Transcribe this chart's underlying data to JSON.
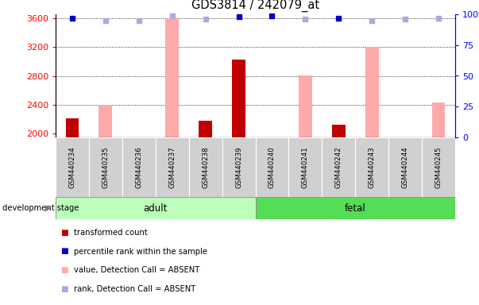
{
  "title": "GDS3814 / 242079_at",
  "samples": [
    "GSM440234",
    "GSM440235",
    "GSM440236",
    "GSM440237",
    "GSM440238",
    "GSM440239",
    "GSM440240",
    "GSM440241",
    "GSM440242",
    "GSM440243",
    "GSM440244",
    "GSM440245"
  ],
  "ylim_left": [
    1950,
    3650
  ],
  "ylim_right": [
    0,
    100
  ],
  "yticks_left": [
    2000,
    2400,
    2800,
    3200,
    3600
  ],
  "yticks_right": [
    0,
    25,
    50,
    75,
    100
  ],
  "bar_values": [
    2210,
    0,
    0,
    0,
    2175,
    3020,
    0,
    0,
    2130,
    0,
    0,
    0
  ],
  "bar_color_dark": "#c00000",
  "absent_bar_values": [
    0,
    2400,
    0,
    3600,
    0,
    0,
    0,
    2800,
    0,
    3200,
    0,
    2430
  ],
  "absent_bar_color": "#ffaaaa",
  "rank_dark": [
    97,
    0,
    0,
    0,
    0,
    98,
    99,
    0,
    97,
    0,
    0,
    0
  ],
  "rank_absent": [
    0,
    95,
    95,
    99,
    96,
    0,
    0,
    96,
    0,
    95,
    96,
    97
  ],
  "rank_dark_color": "#0000cc",
  "rank_absent_color": "#aaaadd",
  "adult_color": "#bbffbb",
  "fetal_color": "#55dd55",
  "legend_items": [
    {
      "label": "transformed count",
      "color": "#c00000"
    },
    {
      "label": "percentile rank within the sample",
      "color": "#0000cc"
    },
    {
      "label": "value, Detection Call = ABSENT",
      "color": "#ffaaaa"
    },
    {
      "label": "rank, Detection Call = ABSENT",
      "color": "#aaaadd"
    }
  ],
  "figsize": [
    6.03,
    3.84
  ],
  "dpi": 100
}
